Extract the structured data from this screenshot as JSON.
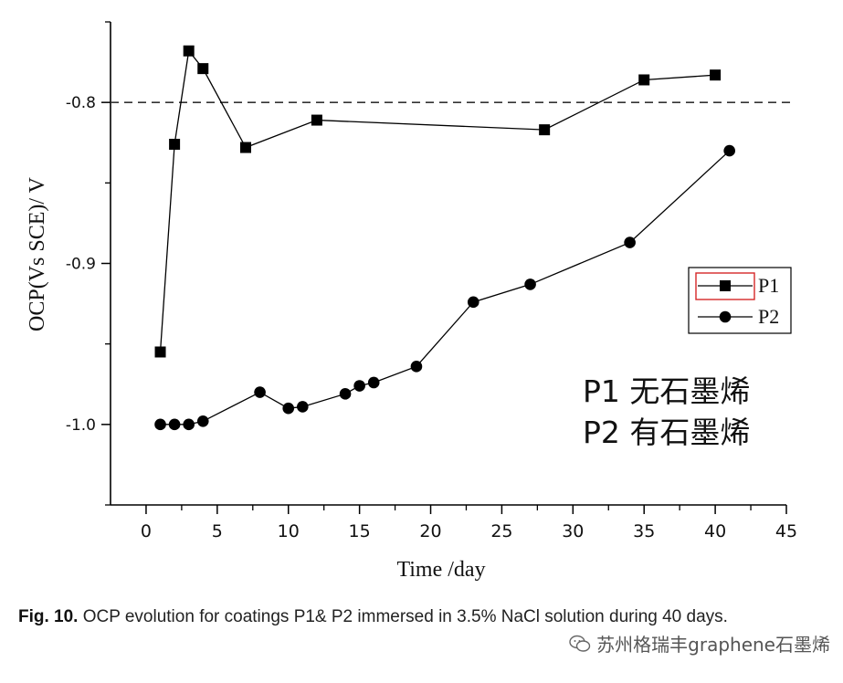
{
  "chart_data": {
    "type": "line",
    "xlabel": "Time /day",
    "ylabel": "OCP(Vs SCE)/ V",
    "xlim": [
      -2.5,
      45
    ],
    "ylim": [
      -1.05,
      -0.75
    ],
    "xticks": [
      0,
      5,
      10,
      15,
      20,
      25,
      30,
      35,
      40,
      45
    ],
    "xtick_labels": [
      "0",
      "5",
      "10",
      "15",
      "20",
      "25",
      "30",
      "35",
      "40",
      "45"
    ],
    "yticks": [
      -1.0,
      -0.9,
      -0.8
    ],
    "ytick_labels": [
      "-1.0",
      "-0.9",
      "-0.8"
    ],
    "reference_line": {
      "y": -0.8,
      "style": "dashed"
    },
    "legend_position": "middle-right",
    "series": [
      {
        "name": "P1",
        "marker": "square",
        "x": [
          1,
          2,
          3,
          4,
          7,
          12,
          28,
          35,
          40
        ],
        "y": [
          -0.955,
          -0.826,
          -0.768,
          -0.779,
          -0.828,
          -0.811,
          -0.817,
          -0.786,
          -0.783
        ]
      },
      {
        "name": "P2",
        "marker": "circle",
        "x": [
          1,
          2,
          3,
          4,
          8,
          10,
          11,
          14,
          15,
          16,
          19,
          23,
          27,
          34,
          41
        ],
        "y": [
          -1.0,
          -1.0,
          -1.0,
          -0.998,
          -0.98,
          -0.99,
          -0.989,
          -0.981,
          -0.976,
          -0.974,
          -0.964,
          -0.924,
          -0.913,
          -0.887,
          -0.83
        ]
      }
    ],
    "annotations": [
      "P1 无石墨烯",
      "P2 有石墨烯"
    ]
  },
  "caption": {
    "label": "Fig. 10.",
    "text": "OCP evolution for coatings P1& P2 immersed in 3.5% NaCl solution during 40 days."
  },
  "watermark": {
    "text": "苏州格瑞丰graphene石墨烯"
  }
}
